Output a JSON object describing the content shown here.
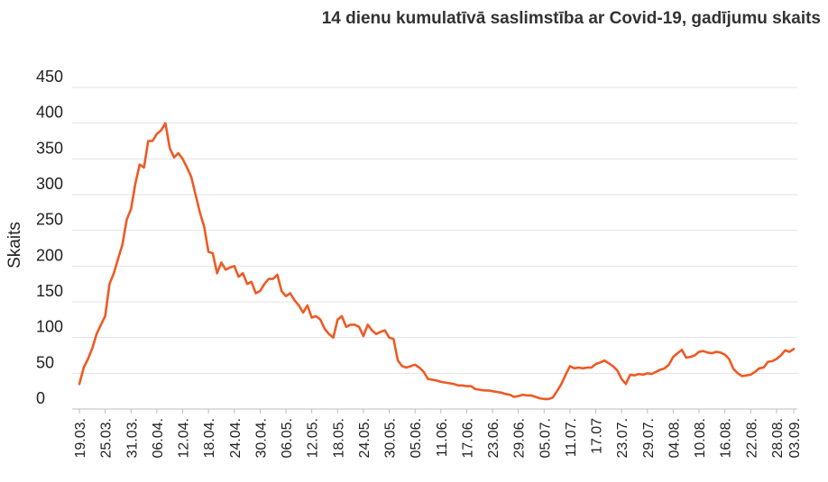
{
  "chart_data": {
    "type": "line",
    "title": "14 dienu kumulatīvā saslimstība ar Covid-19, gadījumu skaits",
    "ylabel": "Skaits",
    "xlabel": "",
    "ylim": [
      0,
      450
    ],
    "yticks": [
      "0",
      "50",
      "100",
      "150",
      "200",
      "250",
      "300",
      "350",
      "400",
      "450"
    ],
    "grid": true,
    "legend": "none",
    "line_color": "#ee5a24",
    "x_tick_labels": [
      "19.03.",
      "25.03.",
      "31.03.",
      "06.04.",
      "12.04.",
      "18.04.",
      "24.04.",
      "30.04.",
      "06.05.",
      "12.05.",
      "18.05.",
      "24.05.",
      "30.05.",
      "05.06.",
      "11.06.",
      "17.06.",
      "23.06.",
      "29.06.",
      "05.07.",
      "11.07.",
      "17.07",
      "23.07.",
      "29.07.",
      "04.08.",
      "10.08.",
      "16.08.",
      "22.08.",
      "28.08.",
      "03.09."
    ],
    "series": [
      {
        "values": [
          35,
          58,
          70,
          85,
          105,
          118,
          130,
          175,
          190,
          210,
          230,
          265,
          280,
          315,
          342,
          338,
          375,
          375,
          385,
          390,
          400,
          365,
          352,
          358,
          350,
          338,
          325,
          300,
          275,
          255,
          220,
          218,
          190,
          205,
          195,
          198,
          200,
          185,
          190,
          175,
          178,
          162,
          165,
          175,
          182,
          182,
          188,
          165,
          158,
          162,
          152,
          145,
          135,
          145,
          128,
          130,
          125,
          112,
          105,
          100,
          125,
          130,
          115,
          118,
          118,
          115,
          102,
          118,
          110,
          105,
          108,
          110,
          100,
          98,
          68,
          60,
          58,
          60,
          62,
          58,
          52,
          42,
          41,
          40,
          38,
          37,
          36,
          35,
          33,
          33,
          32,
          32,
          28,
          27,
          26,
          26,
          25,
          24,
          23,
          21,
          20,
          17,
          18,
          20,
          19,
          19,
          17,
          15,
          14,
          14,
          16,
          25,
          35,
          48,
          60,
          57,
          58,
          57,
          58,
          58,
          63,
          65,
          68,
          64,
          60,
          54,
          42,
          35,
          48,
          47,
          49,
          48,
          50,
          49,
          52,
          55,
          57,
          62,
          73,
          78,
          83,
          72,
          73,
          75,
          80,
          81,
          79,
          78,
          80,
          79,
          76,
          70,
          56,
          50,
          46,
          47,
          48,
          52,
          57,
          58,
          66,
          67,
          70,
          75,
          82,
          80,
          84
        ]
      }
    ]
  }
}
